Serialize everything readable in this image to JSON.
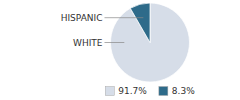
{
  "chart_data": {
    "type": "pie",
    "categories": [
      "WHITE",
      "HISPANIC"
    ],
    "values": [
      91.7,
      8.3
    ],
    "value_labels": [
      "91.7%",
      "8.3%"
    ],
    "colors": [
      "#d6dde8",
      "#2e6b8a"
    ],
    "legend": "bottom"
  }
}
